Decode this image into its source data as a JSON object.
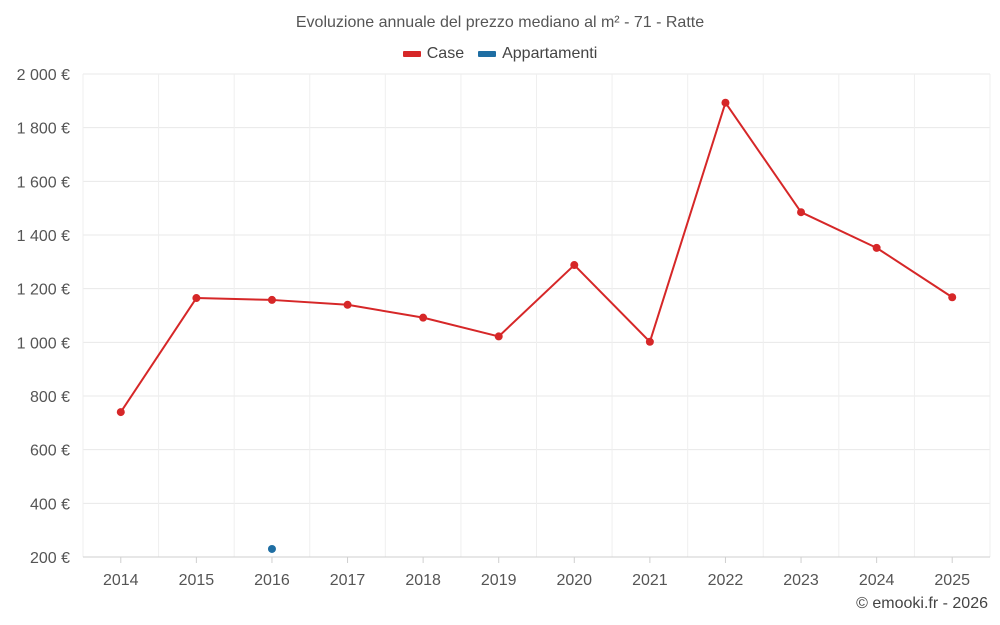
{
  "chart_data": {
    "type": "line",
    "title": "Evoluzione annuale del prezzo mediano al m² - 71 - Ratte",
    "xlabel": "",
    "ylabel": "",
    "categories": [
      "2014",
      "2015",
      "2016",
      "2017",
      "2018",
      "2019",
      "2020",
      "2021",
      "2022",
      "2023",
      "2024",
      "2025"
    ],
    "y_ticks": [
      "200 €",
      "400 €",
      "600 €",
      "800 €",
      "1 000 €",
      "1 200 €",
      "1 400 €",
      "1 600 €",
      "1 800 €",
      "2 000 €"
    ],
    "y_tick_values": [
      200,
      400,
      600,
      800,
      1000,
      1200,
      1400,
      1600,
      1800,
      2000
    ],
    "ylim": [
      200,
      2000
    ],
    "grid": true,
    "legend_position": "top-center",
    "series": [
      {
        "name": "Case",
        "color": "#d62728",
        "values": [
          740,
          1165,
          1158,
          1140,
          1092,
          1022,
          1288,
          1002,
          1893,
          1485,
          1352,
          1168
        ]
      },
      {
        "name": "Appartamenti",
        "color": "#1f6ea3",
        "values": [
          null,
          null,
          230,
          null,
          null,
          null,
          null,
          null,
          null,
          null,
          null,
          null
        ]
      }
    ]
  },
  "credit": "© emooki.fr - 2026"
}
